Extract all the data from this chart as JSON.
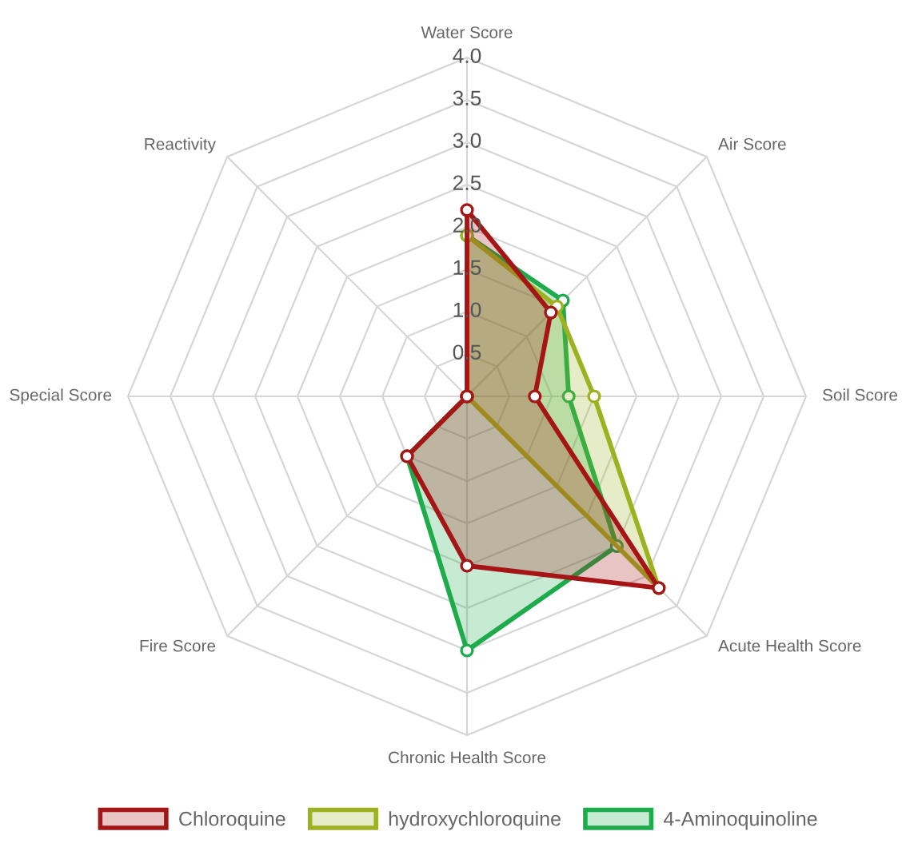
{
  "chart_data": {
    "type": "radar",
    "categories": [
      "Water Score",
      "Air Score",
      "Soil Score",
      "Acute Health Score",
      "Chronic Health Score",
      "Fire Score",
      "Special Score",
      "Reactivity"
    ],
    "series": [
      {
        "name": "Chloroquine",
        "color": "#a51515",
        "values": [
          2.2,
          1.4,
          0.8,
          3.2,
          2.0,
          1.0,
          0,
          0
        ]
      },
      {
        "name": "hydroxychloroquine",
        "color": "#9db220",
        "values": [
          1.9,
          1.5,
          1.5,
          3.2,
          0,
          0,
          0,
          0
        ]
      },
      {
        "name": "4-Aminoquinoline",
        "color": "#1dab4b",
        "values": [
          1.9,
          1.6,
          1.2,
          2.5,
          3.0,
          1.0,
          0,
          0
        ]
      }
    ],
    "ylim": [
      0,
      4
    ],
    "yticks": [
      0.5,
      {
        "value": 1,
        "label": "1.0"
      },
      1.5,
      {
        "value": 2,
        "label": "2.0"
      },
      2.5,
      {
        "value": 3,
        "label": "3.0"
      },
      3.5,
      {
        "value": 4,
        "label": "4.0"
      }
    ],
    "grid": true,
    "legend": "bottom",
    "marker": "circle"
  }
}
